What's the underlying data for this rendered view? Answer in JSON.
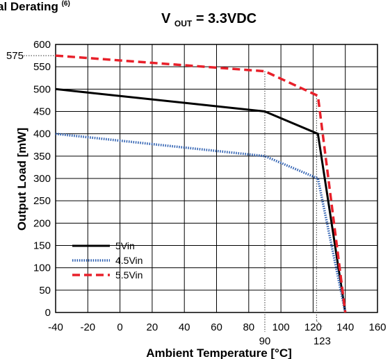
{
  "chart_data": {
    "type": "line",
    "title_partial": "al Derating",
    "title_superscript": "(6)",
    "subtitle_main": "V",
    "subtitle_sub": "OUT",
    "subtitle_rest": "= 3.3VDC",
    "xlabel": "Ambient Temperature [°C]",
    "ylabel": "Output Load [mW]",
    "xlim": [
      -40,
      160
    ],
    "ylim": [
      0,
      600
    ],
    "x_ticks": [
      -40,
      -20,
      0,
      20,
      40,
      60,
      80,
      100,
      120,
      140,
      160
    ],
    "y_ticks": [
      0,
      50,
      100,
      150,
      200,
      250,
      300,
      350,
      400,
      450,
      500,
      550,
      600
    ],
    "grid": true,
    "legend_position": "bottom-left",
    "annotations": {
      "y_575": "575",
      "x_90": "90",
      "x_123": "123"
    },
    "series": [
      {
        "name": "5Vin",
        "color": "#000000",
        "style": "solid",
        "points": [
          [
            -40,
            500
          ],
          [
            90,
            450
          ],
          [
            123,
            400
          ],
          [
            140,
            0
          ]
        ]
      },
      {
        "name": "4.5Vin",
        "color": "#2a5db0",
        "style": "dotted",
        "points": [
          [
            -40,
            400
          ],
          [
            90,
            350
          ],
          [
            123,
            300
          ],
          [
            140,
            0
          ]
        ]
      },
      {
        "name": "5.5Vin",
        "color": "#e8202a",
        "style": "dashed",
        "points": [
          [
            -40,
            575
          ],
          [
            90,
            540
          ],
          [
            123,
            485
          ],
          [
            140,
            0
          ]
        ]
      }
    ]
  }
}
